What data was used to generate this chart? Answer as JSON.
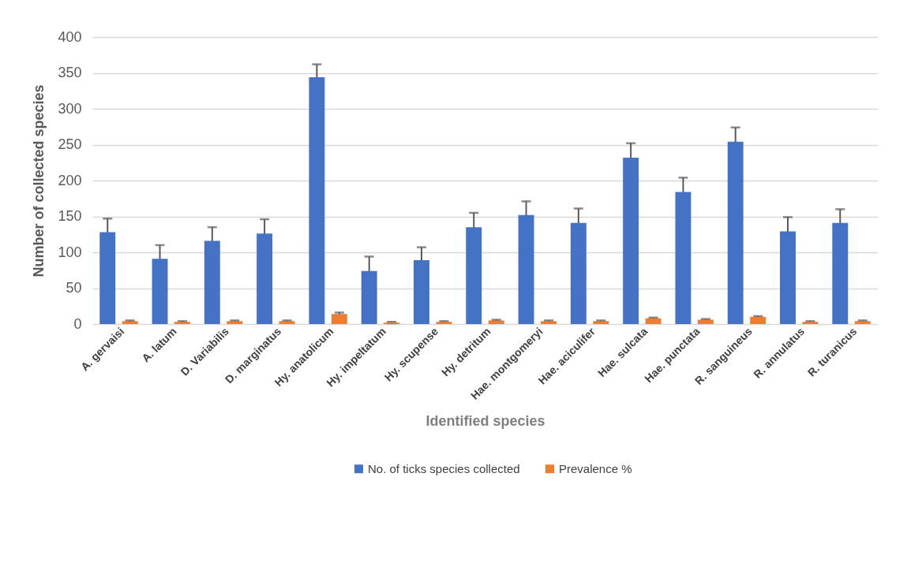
{
  "chart_data": {
    "type": "bar",
    "xlabel": "Identified species",
    "ylabel": "Number of collected species",
    "categories": [
      "A. gervaisi",
      "A. latum",
      "D. Variabilis",
      "D. marginatus",
      "Hy. anatolicum",
      "Hy. impeltatum",
      "Hy. scupense",
      "Hy. detritum",
      "Hae. montgomeryi",
      "Hae. aciculifer",
      "Hae. sulcata",
      "Hae. punctata",
      "R. sanguineus",
      "R. annulatus",
      "R. turanicus"
    ],
    "series": [
      {
        "name": "No. of ticks species collected",
        "color": "#4472c4",
        "values": [
          128,
          91,
          116,
          126,
          344,
          74,
          89,
          135,
          152,
          141,
          232,
          184,
          254,
          129,
          141
        ],
        "errors": [
          19,
          19,
          19,
          20,
          18,
          20,
          18,
          20,
          19,
          20,
          20,
          20,
          20,
          20,
          19
        ]
      },
      {
        "name": "Prevalence %",
        "color": "#ed7d31",
        "values": [
          4,
          3,
          4,
          4,
          14,
          2,
          3,
          5,
          4,
          4,
          8,
          6,
          10,
          3,
          4
        ],
        "errors": [
          1,
          1,
          1,
          1,
          2,
          1,
          1,
          1,
          1,
          1,
          1,
          1,
          1,
          1,
          1
        ]
      }
    ],
    "ylim": [
      0,
      400
    ],
    "yticks": [
      0,
      50,
      100,
      150,
      200,
      250,
      300,
      350,
      400
    ],
    "grid": "y",
    "legend": "bottom"
  }
}
